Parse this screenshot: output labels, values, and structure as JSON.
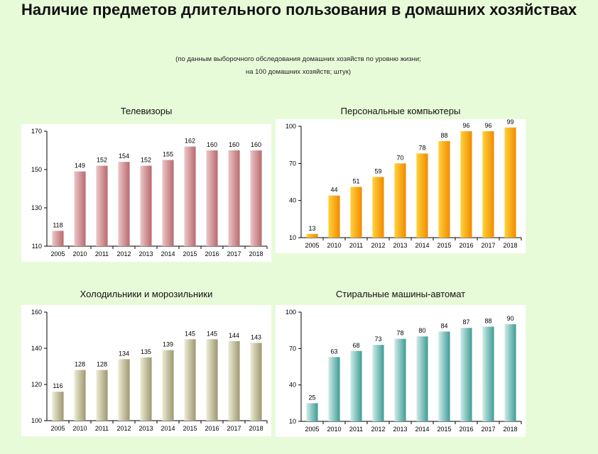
{
  "header": {
    "title": "Наличие предметов длительного пользования в домашних хозяйствах",
    "subtitle_line1": "(по данным выборочного обследования домашних хозяйств по уровню жизни;",
    "subtitle_line2": "на 100 домашних хозяйств; штук)"
  },
  "chart_data": [
    {
      "type": "bar",
      "title": "Телевизоры",
      "categories": [
        "2005",
        "2010",
        "2011",
        "2012",
        "2013",
        "2014",
        "2015",
        "2016",
        "2017",
        "2018"
      ],
      "values": [
        118,
        149,
        152,
        154,
        152,
        155,
        162,
        160,
        160,
        160
      ],
      "ylim": [
        110,
        170
      ],
      "yticks": [
        110,
        130,
        150,
        170
      ],
      "color": "#b86a6e",
      "color_light": "#ecc7c8",
      "grid": false
    },
    {
      "type": "bar",
      "title": "Персональные компьютеры",
      "categories": [
        "2005",
        "2010",
        "2011",
        "2012",
        "2013",
        "2014",
        "2015",
        "2016",
        "2017",
        "2018"
      ],
      "values": [
        13,
        44,
        51,
        59,
        70,
        78,
        88,
        96,
        96,
        99
      ],
      "ylim": [
        10,
        100
      ],
      "yticks": [
        10,
        40,
        70,
        100
      ],
      "color": "#f18a00",
      "color_light": "#ffd23a",
      "grid": false
    },
    {
      "type": "bar",
      "title": "Холодильники и морозильники",
      "categories": [
        "2005",
        "2010",
        "2011",
        "2012",
        "2013",
        "2014",
        "2015",
        "2016",
        "2017",
        "2018"
      ],
      "values": [
        116,
        128,
        128,
        134,
        135,
        139,
        145,
        145,
        144,
        143
      ],
      "ylim": [
        100,
        160
      ],
      "yticks": [
        100,
        120,
        140,
        160
      ],
      "color": "#9c9870",
      "color_light": "#eeecd6",
      "grid": false
    },
    {
      "type": "bar",
      "title": "Стиральные машины-автомат",
      "categories": [
        "2005",
        "2010",
        "2011",
        "2012",
        "2013",
        "2014",
        "2015",
        "2016",
        "2017",
        "2018"
      ],
      "values": [
        25,
        63,
        68,
        73,
        78,
        80,
        84,
        87,
        88,
        90
      ],
      "ylim": [
        10,
        100
      ],
      "yticks": [
        10,
        40,
        70,
        100
      ],
      "color": "#3e9c95",
      "color_light": "#cfece7",
      "grid": false
    }
  ]
}
